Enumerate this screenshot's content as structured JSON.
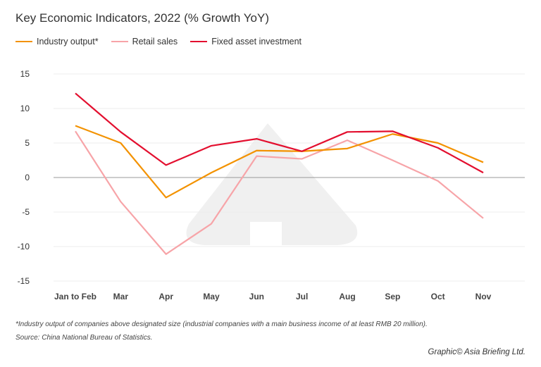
{
  "chart_data": {
    "type": "line",
    "title": "Key Economic Indicators, 2022 (% Growth YoY)",
    "categories": [
      "Jan to Feb",
      "Mar",
      "Apr",
      "May",
      "Jun",
      "Jul",
      "Aug",
      "Sep",
      "Oct",
      "Nov"
    ],
    "series": [
      {
        "name": "Industry output*",
        "color": "#f39200",
        "values": [
          7.5,
          5.0,
          -2.9,
          0.7,
          3.9,
          3.8,
          4.2,
          6.3,
          5.0,
          2.2
        ]
      },
      {
        "name": "Retail sales",
        "color": "#f7a4a8",
        "values": [
          6.7,
          -3.5,
          -11.1,
          -6.7,
          3.1,
          2.7,
          5.4,
          2.5,
          -0.5,
          -5.9
        ]
      },
      {
        "name": "Fixed asset investment",
        "color": "#e30f2f",
        "values": [
          12.2,
          6.6,
          1.8,
          4.6,
          5.6,
          3.8,
          6.6,
          6.7,
          4.3,
          0.7
        ]
      }
    ],
    "ylim": [
      -15,
      15
    ],
    "yticks": [
      "15",
      "10",
      "5",
      "0",
      "-5",
      "-10",
      "-15"
    ],
    "grid": true,
    "legend": "top-left"
  },
  "footnote": "*Industry output of companies above designated size (industrial companies with a main business income of at least RMB 20 million).",
  "source": "Source: China National Bureau of Statistics.",
  "credit": "Graphic© Asia Briefing Ltd."
}
